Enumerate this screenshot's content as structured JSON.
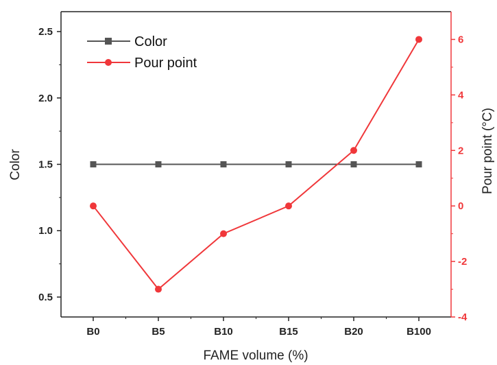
{
  "chart_data": {
    "type": "line",
    "categories": [
      "B0",
      "B5",
      "B10",
      "B15",
      "B20",
      "B100"
    ],
    "xlabel": "FAME volume (%)",
    "ylabel_left": "Color",
    "ylabel_right": "Pour point (°C)",
    "ylim_left": [
      0.35,
      2.65
    ],
    "ylim_right": [
      -4,
      7
    ],
    "yticks_left": [
      "0.5",
      "1.0",
      "1.5",
      "2.0",
      "2.5"
    ],
    "yticks_right": [
      "-4",
      "-2",
      "0",
      "2",
      "4",
      "6"
    ],
    "legend_position": "top-left",
    "grid": false,
    "series": [
      {
        "name": "Color",
        "axis": "left",
        "color": "#555555",
        "marker": "square",
        "values": [
          1.5,
          1.5,
          1.5,
          1.5,
          1.5,
          1.5
        ]
      },
      {
        "name": "Pour point",
        "axis": "right",
        "color": "#f0373a",
        "marker": "circle",
        "values": [
          0,
          -3,
          -1,
          0,
          2,
          6
        ]
      }
    ]
  }
}
